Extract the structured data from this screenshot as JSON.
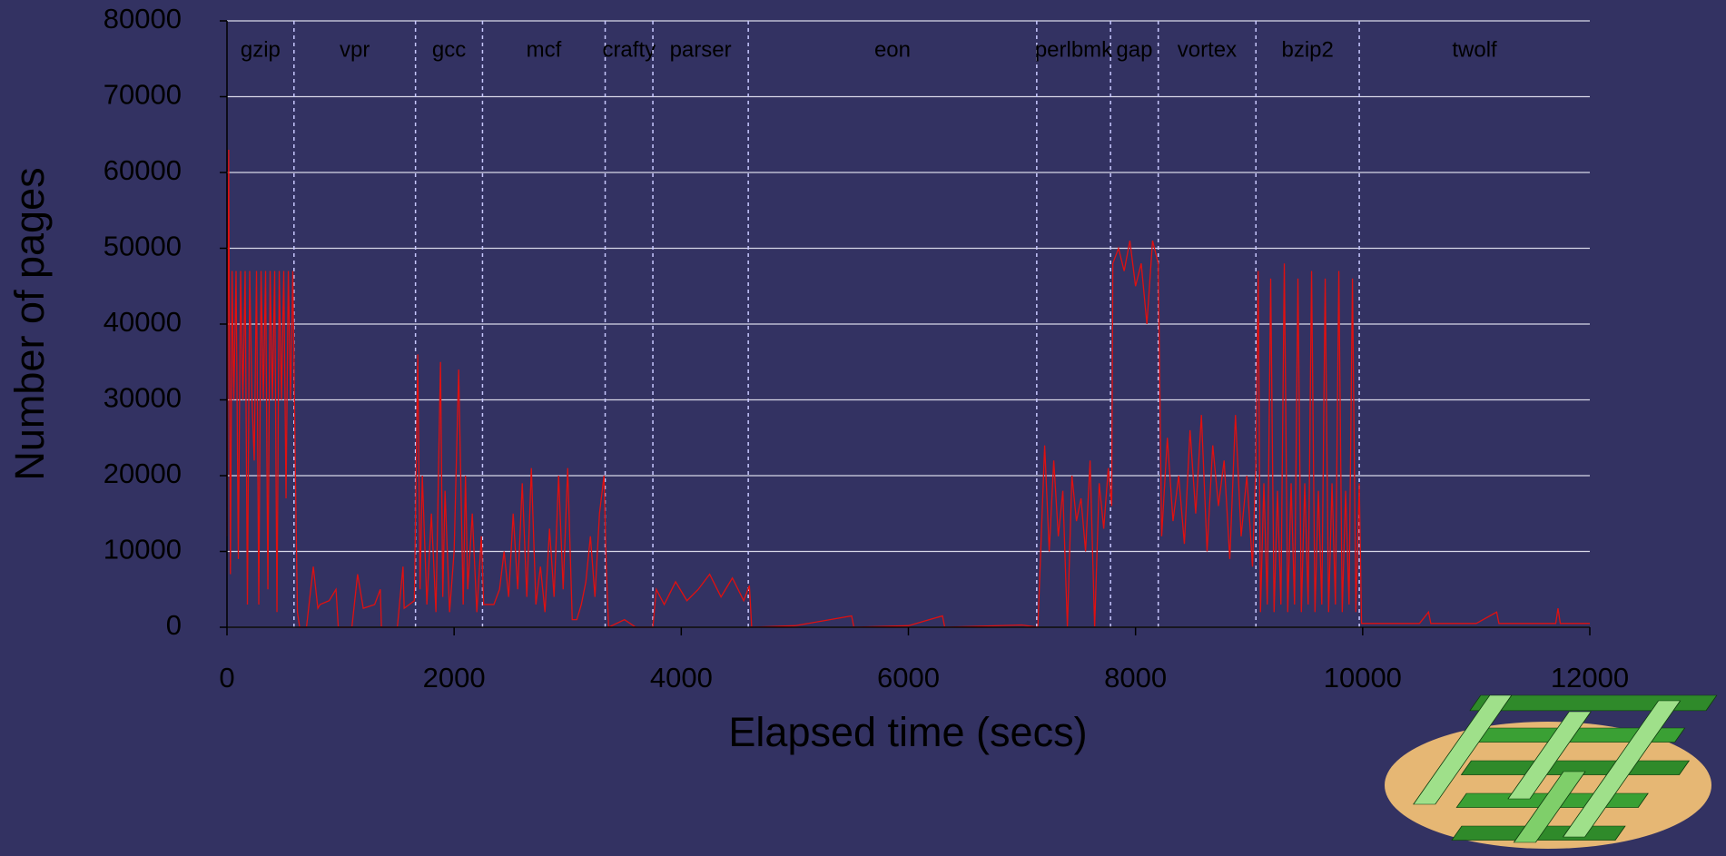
{
  "chart_data": {
    "type": "line",
    "xlabel": "Elapsed time (secs)",
    "ylabel": "Number of pages",
    "color": "#e01010",
    "xlim": [
      0,
      12000
    ],
    "xticks": [
      0,
      2000,
      4000,
      6000,
      8000,
      10000,
      12000
    ],
    "ylim": [
      0,
      80000
    ],
    "yticks": [
      0,
      10000,
      20000,
      30000,
      40000,
      50000,
      60000,
      70000,
      80000
    ],
    "grid": true,
    "phases": [
      {
        "name": "gzip",
        "start": 0,
        "end": 590
      },
      {
        "name": "vpr",
        "start": 590,
        "end": 1660
      },
      {
        "name": "gcc",
        "start": 1660,
        "end": 2250
      },
      {
        "name": "mcf",
        "start": 2250,
        "end": 3330
      },
      {
        "name": "crafty",
        "start": 3330,
        "end": 3750
      },
      {
        "name": "parser",
        "start": 3750,
        "end": 4590
      },
      {
        "name": "eon",
        "start": 4590,
        "end": 7130
      },
      {
        "name": "perlbmk",
        "start": 7130,
        "end": 7780
      },
      {
        "name": "gap",
        "start": 7780,
        "end": 8200
      },
      {
        "name": "vortex",
        "start": 8200,
        "end": 9060
      },
      {
        "name": "bzip2",
        "start": 9060,
        "end": 9970
      },
      {
        "name": "twolf",
        "start": 9970,
        "end": 12000
      }
    ],
    "x": [
      0,
      15,
      30,
      45,
      60,
      80,
      100,
      120,
      140,
      160,
      180,
      200,
      220,
      240,
      260,
      280,
      300,
      320,
      340,
      360,
      380,
      400,
      420,
      440,
      460,
      480,
      500,
      520,
      540,
      560,
      580,
      600,
      620,
      640,
      700,
      760,
      800,
      820,
      900,
      960,
      980,
      1000,
      1100,
      1150,
      1200,
      1300,
      1350,
      1360,
      1500,
      1550,
      1560,
      1650,
      1680,
      1700,
      1720,
      1760,
      1800,
      1840,
      1880,
      1900,
      1920,
      1960,
      2000,
      2040,
      2080,
      2100,
      2120,
      2160,
      2200,
      2240,
      2260,
      2350,
      2400,
      2440,
      2480,
      2520,
      2560,
      2600,
      2640,
      2680,
      2720,
      2760,
      2800,
      2840,
      2880,
      2920,
      2960,
      3000,
      3040,
      3080,
      3120,
      3160,
      3200,
      3240,
      3280,
      3320,
      3340,
      3360,
      3500,
      3600,
      3750,
      3780,
      3850,
      3950,
      4050,
      4150,
      4250,
      4350,
      4450,
      4550,
      4600,
      4620,
      5000,
      5500,
      5520,
      6000,
      6300,
      6320,
      7000,
      7140,
      7160,
      7200,
      7240,
      7280,
      7320,
      7360,
      7400,
      7440,
      7480,
      7520,
      7560,
      7600,
      7640,
      7680,
      7720,
      7760,
      7790,
      7800,
      7850,
      7900,
      7950,
      8000,
      8050,
      8100,
      8150,
      8200,
      8230,
      8280,
      8330,
      8380,
      8430,
      8480,
      8530,
      8580,
      8630,
      8680,
      8730,
      8780,
      8830,
      8880,
      8930,
      8980,
      9030,
      9060,
      9080,
      9100,
      9130,
      9160,
      9190,
      9220,
      9250,
      9280,
      9310,
      9340,
      9370,
      9400,
      9430,
      9460,
      9490,
      9520,
      9550,
      9580,
      9610,
      9640,
      9670,
      9700,
      9730,
      9760,
      9790,
      9820,
      9850,
      9880,
      9910,
      9940,
      9970,
      9990,
      10500,
      10580,
      10600,
      11000,
      11180,
      11200,
      11700,
      11720,
      11740,
      12000
    ],
    "values": [
      12000,
      63000,
      7000,
      47000,
      30000,
      47000,
      9000,
      47000,
      30000,
      47000,
      3000,
      47000,
      30000,
      22000,
      47000,
      3000,
      47000,
      30000,
      47000,
      5000,
      47000,
      30000,
      47000,
      2000,
      47000,
      30000,
      47000,
      17000,
      47000,
      30000,
      47000,
      23000,
      2000,
      0,
      0,
      8000,
      2500,
      3000,
      3500,
      5000,
      0,
      0,
      0,
      7000,
      2500,
      3000,
      5000,
      0,
      0,
      8000,
      2500,
      3500,
      36000,
      5000,
      20000,
      3000,
      15000,
      2000,
      35000,
      4000,
      18000,
      2000,
      10000,
      34000,
      3000,
      20000,
      5000,
      15000,
      2000,
      12000,
      3000,
      3000,
      5000,
      10000,
      4000,
      15000,
      5000,
      19000,
      4000,
      21000,
      3000,
      8000,
      2000,
      13000,
      4000,
      20000,
      5000,
      21000,
      1000,
      1000,
      3000,
      6000,
      12000,
      4000,
      15000,
      20000,
      8000,
      0,
      1000,
      0,
      0,
      5000,
      3000,
      6000,
      3500,
      5000,
      7000,
      4000,
      6500,
      3500,
      5500,
      0,
      200,
      1500,
      0,
      200,
      1500,
      0,
      300,
      0,
      8000,
      24000,
      10000,
      22000,
      12000,
      18000,
      0,
      20000,
      14000,
      17000,
      10000,
      22000,
      0,
      19000,
      13000,
      21000,
      16000,
      48000,
      50000,
      47000,
      51000,
      45000,
      48000,
      40000,
      51000,
      48000,
      12000,
      25000,
      14000,
      20000,
      11000,
      26000,
      15000,
      28000,
      10000,
      24000,
      16000,
      22000,
      9000,
      28000,
      12000,
      20000,
      8000,
      22000,
      47000,
      2000,
      19000,
      3000,
      46000,
      2000,
      18000,
      3000,
      48000,
      2000,
      19000,
      3000,
      46000,
      2000,
      19000,
      3000,
      47000,
      2000,
      18000,
      3000,
      46000,
      2000,
      19000,
      3000,
      47000,
      2000,
      18000,
      3000,
      46000,
      2000,
      19000,
      500,
      500,
      2000,
      500,
      500,
      2000,
      500,
      500,
      2500,
      500,
      500
    ]
  }
}
